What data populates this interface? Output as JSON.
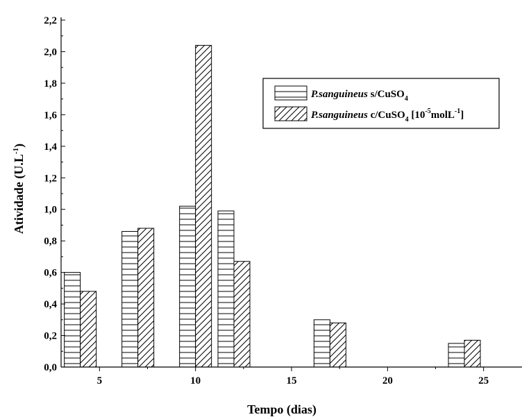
{
  "chart_data": {
    "type": "bar",
    "xlabel": "Tempo (dias)",
    "ylabel": {
      "main": "Atividade (U.L",
      "sup": "-1",
      "close": ")"
    },
    "xlim": [
      3,
      27
    ],
    "ylim": [
      0,
      2.2
    ],
    "x_ticks": [
      5,
      10,
      15,
      20,
      25
    ],
    "y_ticks": [
      0,
      0.2,
      0.4,
      0.6,
      0.8,
      1.0,
      1.2,
      1.4,
      1.6,
      1.8,
      2.0,
      2.2
    ],
    "y_tick_labels": [
      "0,0",
      "0,2",
      "0,4",
      "0,6",
      "0,8",
      "1,0",
      "1,2",
      "1,4",
      "1,6",
      "1,8",
      "2,0",
      "2,2"
    ],
    "x_tick_labels": [
      "5",
      "10",
      "15",
      "20",
      "25"
    ],
    "days": [
      4,
      7,
      10,
      12,
      17,
      24
    ],
    "series": [
      {
        "name": "P.sanguineus s/CuSO4",
        "pattern": "horizontal-lines",
        "values": [
          0.6,
          0.86,
          1.02,
          0.99,
          0.3,
          0.15
        ]
      },
      {
        "name": "P.sanguineus c/CuSO4 [10-5molL-1]",
        "pattern": "diagonal-lines",
        "values": [
          0.48,
          0.88,
          2.04,
          0.67,
          0.28,
          0.17
        ]
      }
    ],
    "legend": {
      "placement": "top-right",
      "entries": [
        {
          "italic": "P.sanguineus",
          "rest": " s/CuSO",
          "sub": "4",
          "tail": ""
        },
        {
          "italic": "P.sanguineus",
          "rest": " c/CuSO",
          "sub": "4",
          "tail": " [10",
          "sup1": "-5",
          "tail2": "molL",
          "sup2": "-1",
          "tail3": "]"
        }
      ]
    }
  }
}
